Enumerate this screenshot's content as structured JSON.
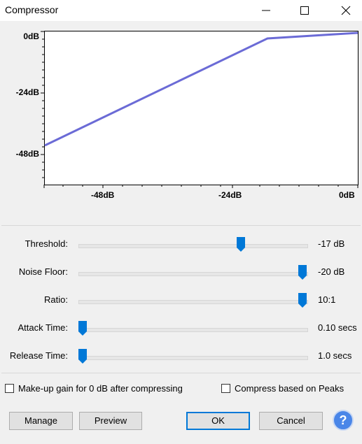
{
  "window": {
    "title": "Compressor"
  },
  "graph": {
    "y_ticks": [
      "0dB",
      "-24dB",
      "-48dB"
    ],
    "x_ticks": [
      "-48dB",
      "-24dB",
      "0dB"
    ],
    "curve_color": "#6b6bd6"
  },
  "controls": [
    {
      "label": "Threshold:",
      "value": "-17 dB",
      "level": 0.72
    },
    {
      "label": "Noise Floor:",
      "value": "-20 dB",
      "level": 1.0
    },
    {
      "label": "Ratio:",
      "value": "10:1",
      "level": 1.0
    },
    {
      "label": "Attack Time:",
      "value": "0.10 secs",
      "level": 0.0
    },
    {
      "label": "Release Time:",
      "value": "1.0 secs",
      "level": 0.0
    }
  ],
  "checkboxes": {
    "makeup_gain": {
      "label": "Make-up gain for 0 dB after compressing",
      "checked": false
    },
    "peaks": {
      "label": "Compress based on Peaks",
      "checked": false
    }
  },
  "buttons": {
    "manage": "Manage",
    "preview": "Preview",
    "ok": "OK",
    "cancel": "Cancel",
    "help": "?"
  },
  "colors": {
    "accent": "#0078d7",
    "help": "#4a86e8"
  }
}
